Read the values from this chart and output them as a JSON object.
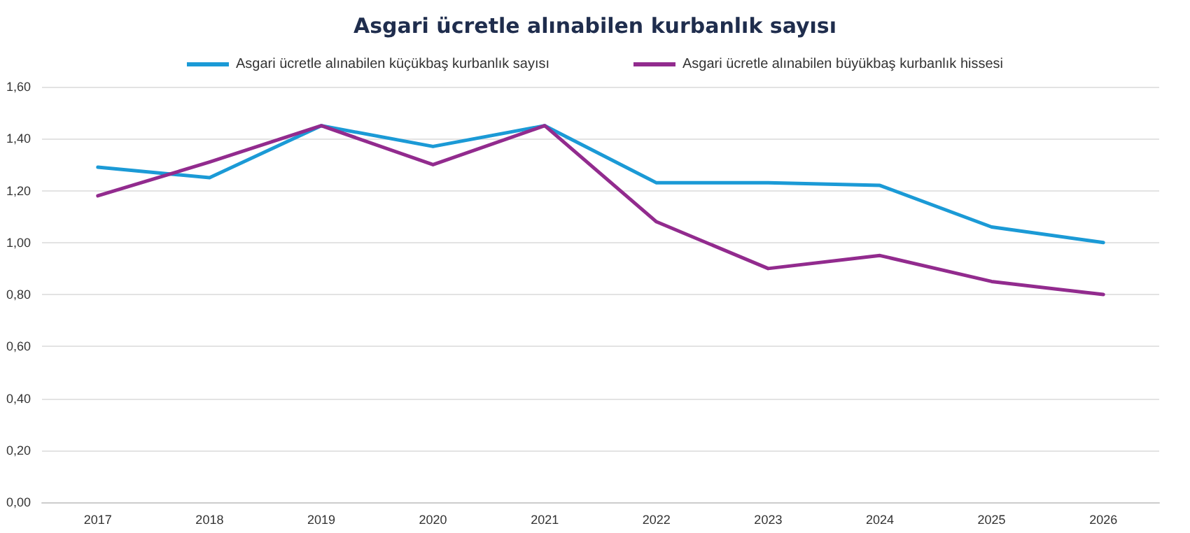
{
  "chart_data": {
    "type": "line",
    "title": "Asgari ücretle alınabilen kurbanlık sayısı",
    "categories": [
      "2017",
      "2018",
      "2019",
      "2020",
      "2021",
      "2022",
      "2023",
      "2024",
      "2025",
      "2026"
    ],
    "series": [
      {
        "name": "Asgari ücretle alınabilen küçükbaş kurbanlık sayısı",
        "color": "#1b9ad6",
        "values": [
          1.29,
          1.25,
          1.45,
          1.37,
          1.45,
          1.23,
          1.23,
          1.22,
          1.06,
          1.0
        ]
      },
      {
        "name": "Asgari ücretle alınabilen büyükbaş kurbanlık hissesi",
        "color": "#922b8e",
        "values": [
          1.18,
          1.31,
          1.45,
          1.3,
          1.45,
          1.08,
          0.9,
          0.95,
          0.85,
          0.8
        ]
      }
    ],
    "ylim": [
      0,
      1.6
    ],
    "yticks": [
      {
        "value": 0,
        "label": "0,00"
      },
      {
        "value": 0.2,
        "label": "0,20"
      },
      {
        "value": 0.4,
        "label": "0,40"
      },
      {
        "value": 0.6,
        "label": "0,60"
      },
      {
        "value": 0.8,
        "label": "0,80"
      },
      {
        "value": 1.0,
        "label": "1,00"
      },
      {
        "value": 1.2,
        "label": "1,20"
      },
      {
        "value": 1.4,
        "label": "1,40"
      },
      {
        "value": 1.6,
        "label": "1,60"
      }
    ],
    "grid": "y",
    "legend": "top",
    "marker": "none",
    "line_style": "solid"
  }
}
